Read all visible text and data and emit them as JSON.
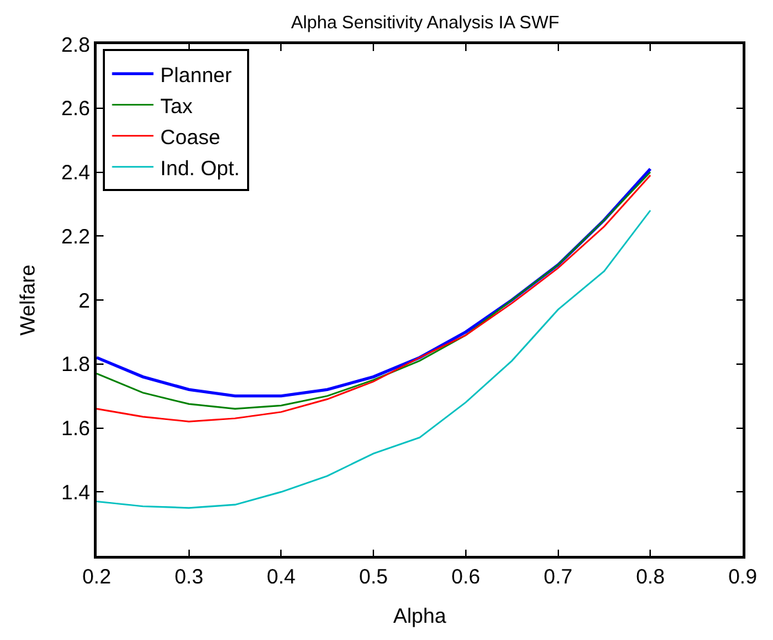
{
  "chart_data": {
    "type": "line",
    "title": "Alpha Sensitivity Analysis IA SWF",
    "xlabel": "Alpha",
    "ylabel": "Welfare",
    "x": [
      0.2,
      0.25,
      0.3,
      0.35,
      0.4,
      0.45,
      0.5,
      0.55,
      0.6,
      0.65,
      0.7,
      0.75,
      0.8
    ],
    "series": [
      {
        "name": "Planner",
        "color": "#0000ff",
        "values": [
          1.82,
          1.76,
          1.72,
          1.7,
          1.7,
          1.72,
          1.76,
          1.82,
          1.9,
          2.0,
          2.11,
          2.25,
          2.41
        ]
      },
      {
        "name": "Tax",
        "color": "#008000",
        "values": [
          1.77,
          1.71,
          1.675,
          1.66,
          1.67,
          1.7,
          1.75,
          1.81,
          1.89,
          2.0,
          2.11,
          2.25,
          2.4
        ]
      },
      {
        "name": "Coase",
        "color": "#ff0000",
        "values": [
          1.66,
          1.635,
          1.62,
          1.63,
          1.65,
          1.69,
          1.745,
          1.82,
          1.89,
          1.99,
          2.1,
          2.23,
          2.39
        ]
      },
      {
        "name": "Ind. Opt.",
        "color": "#00bfbf",
        "values": [
          1.37,
          1.355,
          1.35,
          1.36,
          1.4,
          1.45,
          1.52,
          1.57,
          1.68,
          1.81,
          1.97,
          2.09,
          2.28
        ]
      }
    ],
    "xlim": [
      0.2,
      0.9
    ],
    "xticks": [
      0.2,
      0.3,
      0.4,
      0.5,
      0.6,
      0.7,
      0.8,
      0.9
    ],
    "ylim": [
      1.2,
      2.8
    ],
    "yticks": [
      1.4,
      1.6,
      1.8,
      2,
      2.2,
      2.4,
      2.6,
      2.8
    ],
    "grid": false,
    "legend": "top left",
    "marker": "none",
    "line_style": "solid"
  }
}
